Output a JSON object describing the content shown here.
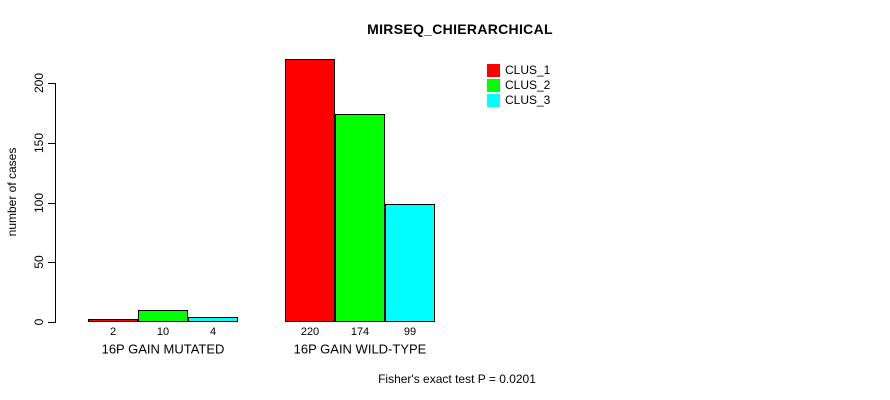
{
  "window": {
    "background": "#FFFFFF",
    "text_color": "#000000"
  },
  "chart_data": {
    "type": "bar",
    "title": "MIRSEQ_CHIERARCHICAL",
    "ylabel": "number of cases",
    "xlabel": "",
    "categories": [
      "16P GAIN MUTATED",
      "16P GAIN WILD-TYPE"
    ],
    "series": [
      {
        "name": "CLUS_1",
        "color": "#FF0000",
        "values": [
          2,
          220
        ]
      },
      {
        "name": "CLUS_2",
        "color": "#00FF00",
        "values": [
          10,
          174
        ]
      },
      {
        "name": "CLUS_3",
        "color": "#00FFFF",
        "values": [
          4,
          99
        ]
      }
    ],
    "yticks": [
      0,
      50,
      100,
      150,
      200
    ],
    "ylim": [
      0,
      225
    ],
    "grid": false,
    "bar_value_labels_shown": true,
    "legend_position": "top-right",
    "annotation": "Fisher's exact test P = 0.0201"
  }
}
